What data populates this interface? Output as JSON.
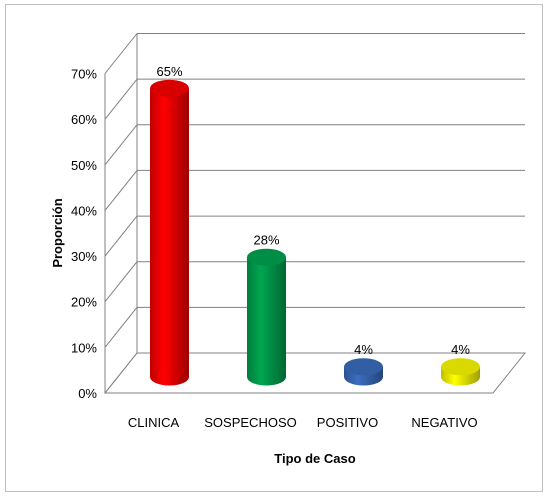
{
  "chart_data": {
    "type": "bar",
    "subtype": "3d-cylinder",
    "title": "",
    "xlabel": "Tipo de Caso",
    "ylabel": "Proporción",
    "categories": [
      "CLINICA",
      "SOSPECHOSO",
      "POSITIVO",
      "NEGATIVO"
    ],
    "values": [
      65,
      28,
      4,
      4
    ],
    "data_labels": [
      "65%",
      "28%",
      "4%",
      "4%"
    ],
    "ylim": [
      0,
      70
    ],
    "yticks": [
      0,
      10,
      20,
      30,
      40,
      50,
      60,
      70
    ],
    "ytick_labels": [
      "0%",
      "10%",
      "20%",
      "30%",
      "40%",
      "50%",
      "60%",
      "70%"
    ],
    "grid": true,
    "legend": "none",
    "colors": [
      "#ff0000",
      "#00a651",
      "#3b6fc0",
      "#ffff00"
    ]
  }
}
